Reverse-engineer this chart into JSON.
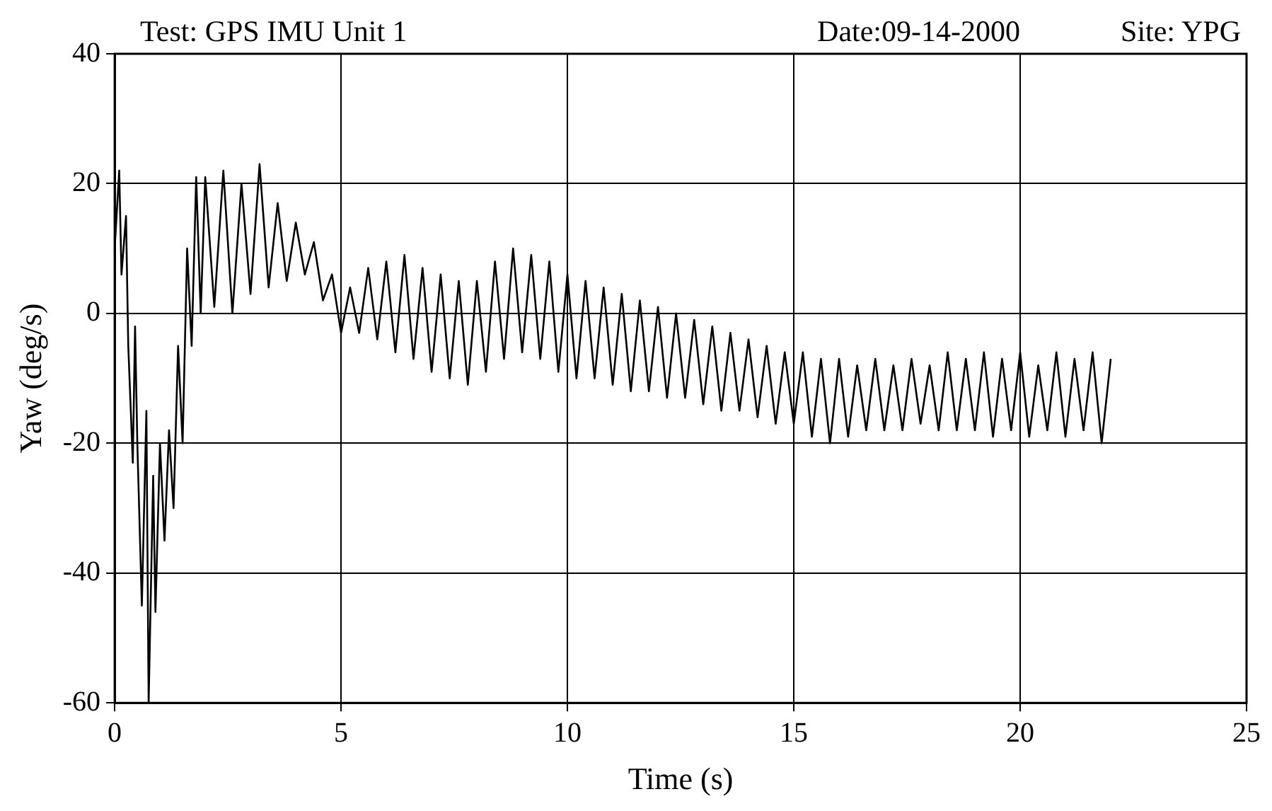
{
  "chart_data": {
    "type": "line",
    "title": "Test: GPS IMU Unit 1",
    "annotations": [
      "Date:09-14-2000",
      "Site: YPG"
    ],
    "xlabel": "Time (s)",
    "ylabel": "Yaw (deg/s)",
    "xlim": [
      0,
      25
    ],
    "xticks": [
      0,
      5,
      10,
      15,
      20,
      25
    ],
    "ylim": [
      -60,
      40
    ],
    "yticks": [
      -60,
      -40,
      -20,
      0,
      20,
      40
    ],
    "grid": true,
    "series": [
      {
        "color": "#000000",
        "x": [
          0,
          0.1,
          0.15,
          0.25,
          0.3,
          0.4,
          0.45,
          0.5,
          0.6,
          0.7,
          0.75,
          0.85,
          0.9,
          1.0,
          1.1,
          1.2,
          1.3,
          1.4,
          1.5,
          1.6,
          1.7,
          1.8,
          1.9,
          2.0,
          2.2,
          2.4,
          2.6,
          2.8,
          3.0,
          3.2,
          3.4,
          3.6,
          3.8,
          4.0,
          4.2,
          4.4,
          4.6,
          4.8,
          5.0,
          5.2,
          5.4,
          5.6,
          5.8,
          6.0,
          6.2,
          6.4,
          6.6,
          6.8,
          7.0,
          7.2,
          7.4,
          7.6,
          7.8,
          8.0,
          8.2,
          8.4,
          8.6,
          8.8,
          9.0,
          9.2,
          9.4,
          9.6,
          9.8,
          10.0,
          10.2,
          10.4,
          10.6,
          10.8,
          11.0,
          11.2,
          11.4,
          11.6,
          11.8,
          12.0,
          12.2,
          12.4,
          12.6,
          12.8,
          13.0,
          13.2,
          13.4,
          13.6,
          13.8,
          14.0,
          14.2,
          14.4,
          14.6,
          14.8,
          15.0,
          15.2,
          15.4,
          15.6,
          15.8,
          16.0,
          16.2,
          16.4,
          16.6,
          16.8,
          17.0,
          17.2,
          17.4,
          17.6,
          17.8,
          18.0,
          18.2,
          18.4,
          18.6,
          18.8,
          19.0,
          19.2,
          19.4,
          19.6,
          19.8,
          20.0,
          20.2,
          20.4,
          20.6,
          20.8,
          21.0,
          21.2,
          21.4,
          21.6,
          21.8,
          22.0
        ],
        "values": [
          10,
          22,
          6,
          15,
          -5,
          -23,
          -2,
          -20,
          -45,
          -15,
          -60,
          -25,
          -46,
          -20,
          -35,
          -18,
          -30,
          -5,
          -20,
          10,
          -5,
          21,
          0,
          21,
          1,
          22,
          0,
          20,
          3,
          23,
          4,
          17,
          5,
          14,
          6,
          11,
          2,
          6,
          -3,
          4,
          -3,
          7,
          -4,
          8,
          -6,
          9,
          -7,
          7,
          -9,
          6,
          -10,
          5,
          -11,
          5,
          -9,
          8,
          -7,
          10,
          -6,
          9,
          -7,
          8,
          -9,
          6,
          -10,
          5,
          -10,
          4,
          -11,
          3,
          -12,
          2,
          -12,
          1,
          -13,
          0,
          -13,
          -1,
          -14,
          -2,
          -15,
          -3,
          -15,
          -4,
          -16,
          -5,
          -17,
          -6,
          -17,
          -6,
          -19,
          -7,
          -20,
          -7,
          -19,
          -8,
          -18,
          -7,
          -18,
          -8,
          -18,
          -7,
          -17,
          -8,
          -18,
          -6,
          -18,
          -7,
          -18,
          -6,
          -19,
          -7,
          -18,
          -6,
          -19,
          -8,
          -18,
          -6,
          -19,
          -7,
          -18,
          -6,
          -20,
          -7
        ]
      }
    ]
  }
}
